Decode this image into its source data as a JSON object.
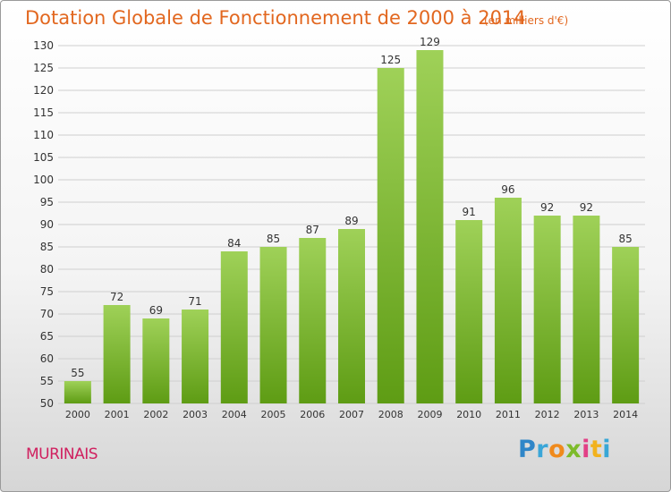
{
  "header": {
    "title": "Dotation Globale de Fonctionnement de 2000 à 2014",
    "subtitle": "(en milliers d'€)"
  },
  "footer": {
    "commune": "MURINAIS",
    "logo_letters": [
      "P",
      "r",
      "o",
      "x",
      "i",
      "t",
      "i"
    ],
    "logo_colors": [
      "#2f86c8",
      "#3aa6d8",
      "#f08a1c",
      "#7dbb2a",
      "#e23f86",
      "#f2b21d",
      "#38a7d6"
    ]
  },
  "colors": {
    "bar_top": "#9fd158",
    "bar_bottom": "#5e9c14",
    "grid": "#cfcfcf",
    "axis_text": "#333333",
    "value_text": "#333333"
  },
  "chart_data": {
    "type": "bar",
    "title": "Dotation Globale de Fonctionnement de 2000 à 2014",
    "subtitle": "(en milliers d'€)",
    "categories": [
      "2000",
      "2001",
      "2002",
      "2003",
      "2004",
      "2005",
      "2006",
      "2007",
      "2008",
      "2009",
      "2010",
      "2011",
      "2012",
      "2013",
      "2014"
    ],
    "values": [
      55,
      72,
      69,
      71,
      84,
      85,
      87,
      89,
      125,
      129,
      91,
      96,
      92,
      92,
      85
    ],
    "ylim": [
      50,
      130
    ],
    "ytick_step": 5,
    "grid": true,
    "legend": "none"
  }
}
